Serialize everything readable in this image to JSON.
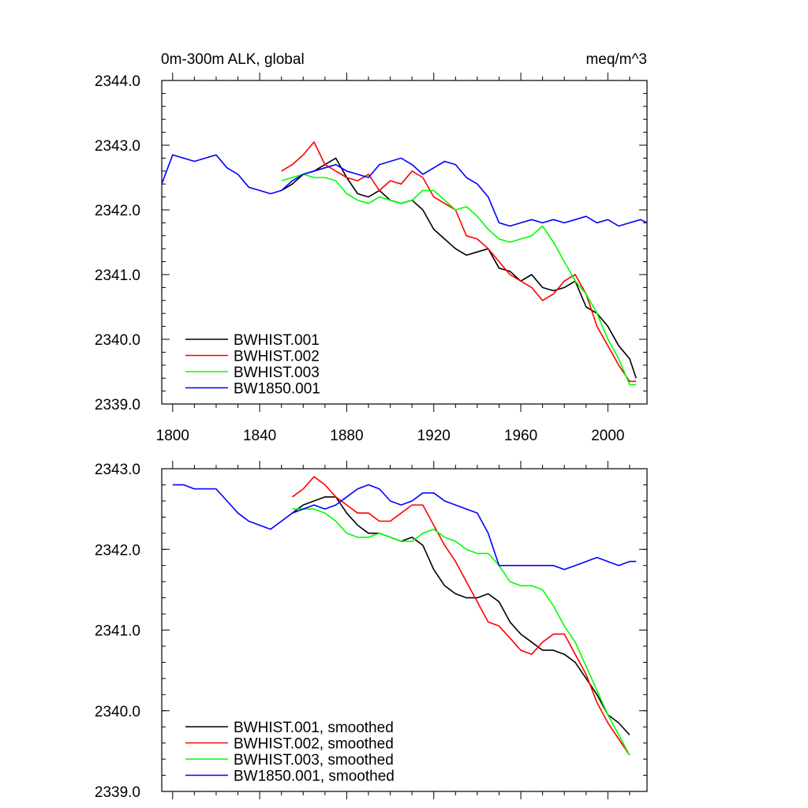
{
  "chart_data": [
    {
      "type": "line",
      "title": "0m-300m ALK, global",
      "units": "meq/m^3",
      "xlabel": "",
      "ylabel": "",
      "xlim": [
        1795,
        2018
      ],
      "ylim": [
        2339.0,
        2344.0
      ],
      "yticks": [
        2339.0,
        2340.0,
        2341.0,
        2342.0,
        2343.0,
        2344.0
      ],
      "ytick_labels": [
        "2339.0",
        "2340.0",
        "2341.0",
        "2342.0",
        "2343.0",
        "2344.0"
      ],
      "xticks": [
        1800,
        1840,
        1880,
        1920,
        1960,
        2000
      ],
      "xtick_labels": [
        "1800",
        "1840",
        "1880",
        "1920",
        "1960",
        "2000"
      ],
      "grid": false,
      "legend_position": "bottom-left",
      "series": [
        {
          "name": "BWHIST.001",
          "color": "#000000",
          "x": [
            1850,
            1855,
            1860,
            1865,
            1870,
            1875,
            1880,
            1885,
            1890,
            1895,
            1900,
            1905,
            1910,
            1915,
            1920,
            1925,
            1930,
            1935,
            1940,
            1945,
            1950,
            1955,
            1960,
            1965,
            1970,
            1975,
            1980,
            1985,
            1990,
            1995,
            2000,
            2005,
            2010,
            2013
          ],
          "y": [
            2342.3,
            2342.4,
            2342.55,
            2342.6,
            2342.7,
            2342.8,
            2342.5,
            2342.25,
            2342.2,
            2342.3,
            2342.15,
            2342.1,
            2342.15,
            2342.0,
            2341.7,
            2341.55,
            2341.4,
            2341.3,
            2341.35,
            2341.4,
            2341.1,
            2341.05,
            2340.9,
            2341.0,
            2340.8,
            2340.75,
            2340.8,
            2340.9,
            2340.5,
            2340.4,
            2340.2,
            2339.9,
            2339.7,
            2339.4
          ]
        },
        {
          "name": "BWHIST.002",
          "color": "#ff0000",
          "x": [
            1850,
            1855,
            1860,
            1865,
            1870,
            1875,
            1880,
            1885,
            1890,
            1895,
            1900,
            1905,
            1910,
            1915,
            1920,
            1925,
            1930,
            1935,
            1940,
            1945,
            1950,
            1955,
            1960,
            1965,
            1970,
            1975,
            1980,
            1985,
            1990,
            1995,
            2000,
            2005,
            2010,
            2013
          ],
          "y": [
            2342.6,
            2342.7,
            2342.85,
            2343.05,
            2342.7,
            2342.6,
            2342.5,
            2342.45,
            2342.55,
            2342.3,
            2342.45,
            2342.4,
            2342.6,
            2342.5,
            2342.2,
            2342.1,
            2342.0,
            2341.6,
            2341.55,
            2341.4,
            2341.2,
            2341.0,
            2340.9,
            2340.8,
            2340.6,
            2340.7,
            2340.9,
            2341.0,
            2340.7,
            2340.2,
            2339.9,
            2339.6,
            2339.35,
            2339.35
          ]
        },
        {
          "name": "BWHIST.003",
          "color": "#00ff00",
          "x": [
            1850,
            1855,
            1860,
            1865,
            1870,
            1875,
            1880,
            1885,
            1890,
            1895,
            1900,
            1905,
            1910,
            1915,
            1920,
            1925,
            1930,
            1935,
            1940,
            1945,
            1950,
            1955,
            1960,
            1965,
            1970,
            1975,
            1980,
            1985,
            1990,
            1995,
            2000,
            2005,
            2010,
            2013
          ],
          "y": [
            2342.45,
            2342.5,
            2342.55,
            2342.5,
            2342.5,
            2342.45,
            2342.25,
            2342.15,
            2342.1,
            2342.2,
            2342.15,
            2342.1,
            2342.15,
            2342.3,
            2342.3,
            2342.15,
            2342.0,
            2342.05,
            2341.9,
            2341.7,
            2341.55,
            2341.5,
            2341.55,
            2341.6,
            2341.75,
            2341.5,
            2341.2,
            2340.9,
            2340.7,
            2340.4,
            2340.0,
            2339.7,
            2339.3,
            2339.3
          ]
        },
        {
          "name": "BW1850.001",
          "color": "#0000ff",
          "x": [
            1795,
            1800,
            1805,
            1810,
            1815,
            1820,
            1825,
            1830,
            1835,
            1840,
            1845,
            1850,
            1855,
            1860,
            1865,
            1870,
            1875,
            1880,
            1885,
            1890,
            1895,
            1900,
            1905,
            1910,
            1915,
            1920,
            1925,
            1930,
            1935,
            1940,
            1945,
            1950,
            1955,
            1960,
            1965,
            1970,
            1975,
            1980,
            1985,
            1990,
            1995,
            2000,
            2005,
            2010,
            2015,
            2018
          ],
          "y": [
            2342.4,
            2342.85,
            2342.8,
            2342.75,
            2342.8,
            2342.85,
            2342.65,
            2342.55,
            2342.35,
            2342.3,
            2342.25,
            2342.3,
            2342.45,
            2342.55,
            2342.6,
            2342.65,
            2342.7,
            2342.6,
            2342.55,
            2342.5,
            2342.7,
            2342.75,
            2342.8,
            2342.7,
            2342.55,
            2342.65,
            2342.75,
            2342.7,
            2342.5,
            2342.4,
            2342.2,
            2341.8,
            2341.75,
            2341.8,
            2341.85,
            2341.8,
            2341.85,
            2341.8,
            2341.85,
            2341.9,
            2341.8,
            2341.85,
            2341.75,
            2341.8,
            2341.85,
            2341.8
          ]
        }
      ]
    },
    {
      "type": "line",
      "title": "",
      "xlabel": "",
      "ylabel": "",
      "xlim": [
        1795,
        2018
      ],
      "ylim": [
        2339.0,
        2343.0
      ],
      "yticks": [
        2339.0,
        2340.0,
        2341.0,
        2342.0,
        2343.0
      ],
      "ytick_labels": [
        "2339.0",
        "2340.0",
        "2341.0",
        "2342.0",
        "2343.0"
      ],
      "xticks": [
        1800,
        1840,
        1880,
        1920,
        1960,
        2000
      ],
      "xtick_labels": [],
      "grid": false,
      "legend_position": "bottom-left",
      "series": [
        {
          "name": "BWHIST.001, smoothed",
          "color": "#000000",
          "x": [
            1855,
            1860,
            1865,
            1870,
            1875,
            1880,
            1885,
            1890,
            1895,
            1900,
            1905,
            1910,
            1915,
            1920,
            1925,
            1930,
            1935,
            1940,
            1945,
            1950,
            1955,
            1960,
            1965,
            1970,
            1975,
            1980,
            1985,
            1990,
            1995,
            2000,
            2005,
            2010
          ],
          "y": [
            2342.45,
            2342.55,
            2342.6,
            2342.65,
            2342.65,
            2342.45,
            2342.3,
            2342.2,
            2342.2,
            2342.15,
            2342.1,
            2342.15,
            2342.05,
            2341.75,
            2341.55,
            2341.45,
            2341.4,
            2341.4,
            2341.45,
            2341.35,
            2341.1,
            2340.95,
            2340.85,
            2340.75,
            2340.75,
            2340.7,
            2340.6,
            2340.4,
            2340.2,
            2339.95,
            2339.85,
            2339.7
          ]
        },
        {
          "name": "BWHIST.002, smoothed",
          "color": "#ff0000",
          "x": [
            1855,
            1860,
            1865,
            1870,
            1875,
            1880,
            1885,
            1890,
            1895,
            1900,
            1905,
            1910,
            1915,
            1920,
            1925,
            1930,
            1935,
            1940,
            1945,
            1950,
            1955,
            1960,
            1965,
            1970,
            1975,
            1980,
            1985,
            1990,
            1995,
            2000,
            2005,
            2010
          ],
          "y": [
            2342.65,
            2342.75,
            2342.9,
            2342.8,
            2342.65,
            2342.55,
            2342.45,
            2342.45,
            2342.35,
            2342.35,
            2342.45,
            2342.55,
            2342.55,
            2342.3,
            2342.05,
            2341.85,
            2341.6,
            2341.35,
            2341.1,
            2341.05,
            2340.9,
            2340.75,
            2340.7,
            2340.85,
            2340.95,
            2340.95,
            2340.7,
            2340.45,
            2340.1,
            2339.85,
            2339.65,
            2339.45
          ]
        },
        {
          "name": "BWHIST.003, smoothed",
          "color": "#00ff00",
          "x": [
            1855,
            1860,
            1865,
            1870,
            1875,
            1880,
            1885,
            1890,
            1895,
            1900,
            1905,
            1910,
            1915,
            1920,
            1925,
            1930,
            1935,
            1940,
            1945,
            1950,
            1955,
            1960,
            1965,
            1970,
            1975,
            1980,
            1985,
            1990,
            1995,
            2000,
            2005,
            2010
          ],
          "y": [
            2342.5,
            2342.5,
            2342.5,
            2342.45,
            2342.35,
            2342.2,
            2342.15,
            2342.15,
            2342.2,
            2342.15,
            2342.1,
            2342.1,
            2342.2,
            2342.25,
            2342.15,
            2342.1,
            2342.0,
            2341.95,
            2341.95,
            2341.8,
            2341.6,
            2341.55,
            2341.55,
            2341.5,
            2341.3,
            2341.05,
            2340.85,
            2340.55,
            2340.25,
            2339.95,
            2339.7,
            2339.45
          ]
        },
        {
          "name": "BW1850.001, smoothed",
          "color": "#0000ff",
          "x": [
            1800,
            1805,
            1810,
            1815,
            1820,
            1825,
            1830,
            1835,
            1840,
            1845,
            1850,
            1855,
            1860,
            1865,
            1870,
            1875,
            1880,
            1885,
            1890,
            1895,
            1900,
            1905,
            1910,
            1915,
            1920,
            1925,
            1930,
            1935,
            1940,
            1945,
            1950,
            1955,
            1960,
            1965,
            1970,
            1975,
            1980,
            1985,
            1990,
            1995,
            2000,
            2005,
            2010,
            2013
          ],
          "y": [
            2342.8,
            2342.8,
            2342.75,
            2342.75,
            2342.75,
            2342.6,
            2342.45,
            2342.35,
            2342.3,
            2342.25,
            2342.35,
            2342.45,
            2342.5,
            2342.55,
            2342.5,
            2342.55,
            2342.65,
            2342.75,
            2342.8,
            2342.75,
            2342.6,
            2342.55,
            2342.6,
            2342.7,
            2342.7,
            2342.6,
            2342.55,
            2342.5,
            2342.45,
            2342.2,
            2341.8,
            2341.8,
            2341.8,
            2341.8,
            2341.8,
            2341.8,
            2341.75,
            2341.8,
            2341.85,
            2341.9,
            2341.85,
            2341.8,
            2341.85,
            2341.85
          ]
        }
      ]
    }
  ]
}
